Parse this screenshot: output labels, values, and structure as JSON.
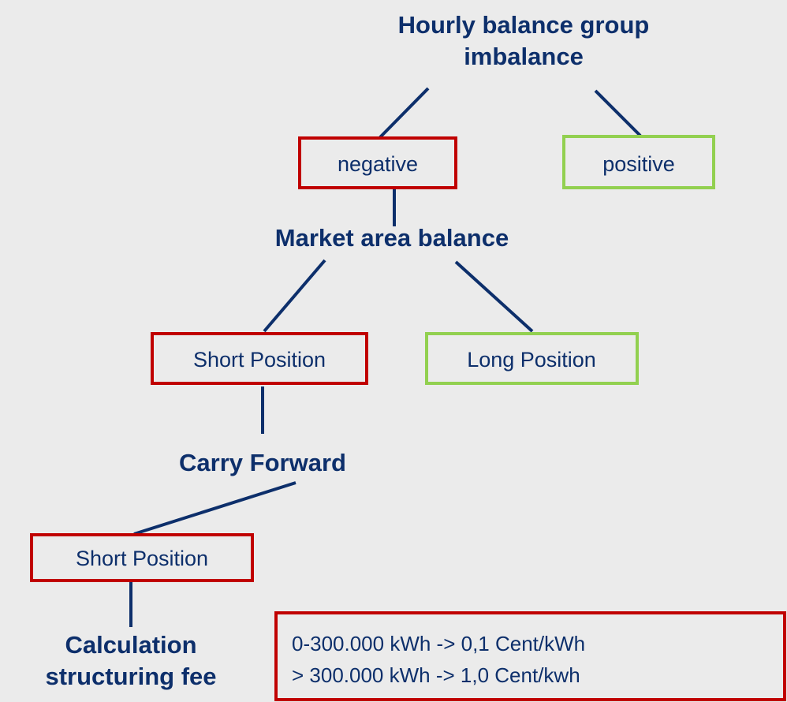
{
  "nodes": [
    {
      "label": "Hourly balance group\nimbalance"
    },
    {
      "label": "negative"
    },
    {
      "label": "positive"
    },
    {
      "label": "Market area balance"
    },
    {
      "label": "Short Position"
    },
    {
      "label": "Long Position"
    },
    {
      "label": "Carry Forward"
    },
    {
      "label": "Short Position"
    },
    {
      "label": "Calculation\nstructuring fee"
    }
  ],
  "note": {
    "lines": [
      "0-300.000 kWh -> 0,1 Cent/kWh",
      "> 300.000 kWh -> 1,0 Cent/kwh"
    ]
  }
}
